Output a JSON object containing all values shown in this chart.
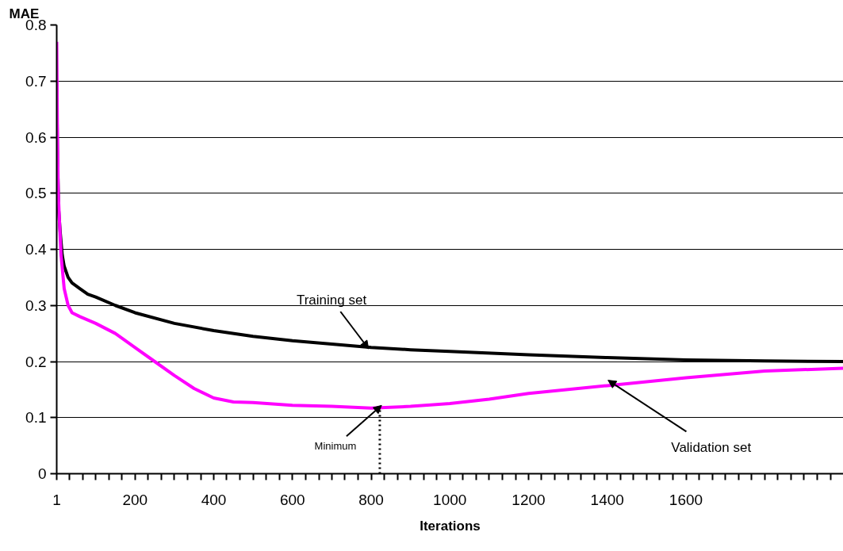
{
  "chart_data": {
    "type": "line",
    "xlabel": "Iterations",
    "ylabel": "MAE",
    "xlim": [
      1,
      2000
    ],
    "ylim": [
      0,
      0.8
    ],
    "xticks": [
      1,
      {
        "value": 34,
        "label": null
      },
      {
        "value": 67,
        "label": null
      },
      {
        "value": 100,
        "label": null
      },
      {
        "value": 134,
        "label": null
      },
      {
        "value": 167,
        "label": null
      },
      200,
      {
        "value": 233,
        "label": null
      },
      {
        "value": 267,
        "label": null
      },
      {
        "value": 300,
        "label": null
      },
      {
        "value": 333,
        "label": null
      },
      {
        "value": 367,
        "label": null
      },
      400,
      {
        "value": 433,
        "label": null
      },
      {
        "value": 467,
        "label": null
      },
      {
        "value": 500,
        "label": null
      },
      {
        "value": 533,
        "label": null
      },
      {
        "value": 567,
        "label": null
      },
      600,
      {
        "value": 633,
        "label": null
      },
      {
        "value": 667,
        "label": null
      },
      {
        "value": 700,
        "label": null
      },
      {
        "value": 733,
        "label": null
      },
      {
        "value": 767,
        "label": null
      },
      800,
      {
        "value": 833,
        "label": null
      },
      {
        "value": 867,
        "label": null
      },
      {
        "value": 900,
        "label": null
      },
      {
        "value": 933,
        "label": null
      },
      {
        "value": 967,
        "label": null
      },
      1000,
      {
        "value": 1033,
        "label": null
      },
      {
        "value": 1067,
        "label": null
      },
      {
        "value": 1100,
        "label": null
      },
      {
        "value": 1133,
        "label": null
      },
      {
        "value": 1167,
        "label": null
      },
      1200,
      {
        "value": 1233,
        "label": null
      },
      {
        "value": 1267,
        "label": null
      },
      {
        "value": 1300,
        "label": null
      },
      {
        "value": 1333,
        "label": null
      },
      {
        "value": 1367,
        "label": null
      },
      1400,
      {
        "value": 1433,
        "label": null
      },
      {
        "value": 1467,
        "label": null
      },
      {
        "value": 1500,
        "label": null
      },
      {
        "value": 1533,
        "label": null
      },
      {
        "value": 1567,
        "label": null
      },
      1600,
      {
        "value": 1633,
        "label": null
      },
      {
        "value": 1667,
        "label": null
      },
      {
        "value": 1700,
        "label": null
      },
      {
        "value": 1733,
        "label": null
      },
      {
        "value": 1767,
        "label": null
      },
      {
        "value": 1800,
        "label": null
      },
      {
        "value": 1833,
        "label": null
      },
      {
        "value": 1867,
        "label": null
      },
      {
        "value": 1900,
        "label": null
      },
      {
        "value": 1933,
        "label": null
      },
      {
        "value": 1967,
        "label": null
      }
    ],
    "yticks": [
      0,
      0.1,
      0.2,
      0.3,
      0.4,
      0.5,
      0.6,
      0.7,
      0.8
    ],
    "grid": "y",
    "line_style": "solid",
    "series": [
      {
        "color": "#000000",
        "x": [
          1,
          3,
          6,
          10,
          15,
          20,
          30,
          40,
          60,
          80,
          100,
          150,
          200,
          300,
          400,
          500,
          600,
          700,
          800,
          900,
          1000,
          1200,
          1400,
          1600,
          1800,
          2000
        ],
        "values": [
          0.7,
          0.56,
          0.47,
          0.43,
          0.39,
          0.37,
          0.35,
          0.34,
          0.33,
          0.32,
          0.315,
          0.3,
          0.287,
          0.268,
          0.255,
          0.245,
          0.237,
          0.231,
          0.225,
          0.221,
          0.218,
          0.212,
          0.207,
          0.203,
          0.201,
          0.2
        ]
      },
      {
        "color": "#ff00ff",
        "x": [
          1,
          3,
          5,
          8,
          12,
          20,
          30,
          40,
          60,
          100,
          150,
          200,
          250,
          300,
          350,
          400,
          450,
          500,
          600,
          700,
          800,
          900,
          1000,
          1100,
          1200,
          1400,
          1600,
          1800,
          2000
        ],
        "values": [
          0.77,
          0.59,
          0.5,
          0.45,
          0.39,
          0.33,
          0.3,
          0.287,
          0.28,
          0.268,
          0.25,
          0.225,
          0.2,
          0.175,
          0.152,
          0.135,
          0.128,
          0.127,
          0.122,
          0.12,
          0.117,
          0.12,
          0.125,
          0.133,
          0.143,
          0.157,
          0.171,
          0.183,
          0.188
        ]
      },
      {
        "type": "line",
        "line_style": "dotted",
        "color": "#000000",
        "x": [
          822,
          822
        ],
        "values": [
          0,
          0.116
        ]
      }
    ],
    "annotations": [
      {
        "text": "Training set",
        "x": 790,
        "y": 0.226
      },
      {
        "text": "Minimum",
        "x": 822,
        "y": 0.119
      },
      {
        "text": "Validation set",
        "x": 1412,
        "y": 0.162
      }
    ]
  }
}
